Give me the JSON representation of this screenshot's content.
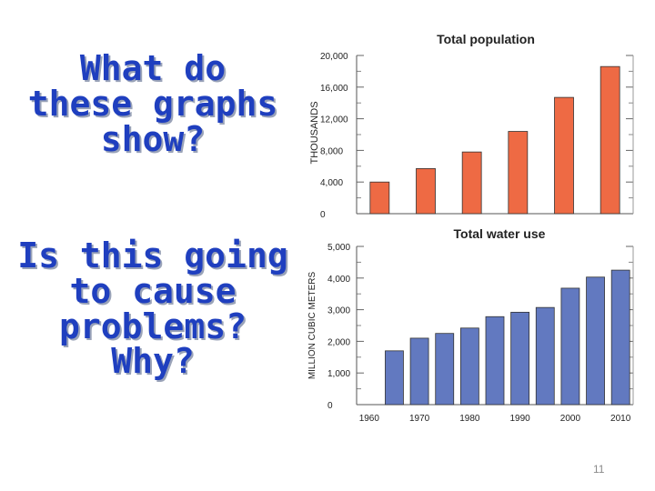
{
  "slide": {
    "question1_lines": [
      "What do",
      "these graphs",
      "show?"
    ],
    "question2_lines": [
      "Is this going",
      "to cause",
      "problems?",
      "Why?"
    ],
    "page_number": "11"
  },
  "chart_data": [
    {
      "type": "bar",
      "title": "Total population",
      "ylabel": "THOUSANDS",
      "categories": [
        "1960",
        "1970",
        "1980",
        "1990",
        "2000",
        "2010"
      ],
      "values": [
        4000,
        5700,
        7800,
        10400,
        14700,
        18600
      ],
      "ylim": [
        0,
        20000
      ],
      "yticks": [
        "0",
        "4,000",
        "8,000",
        "12,000",
        "16,000",
        "20,000"
      ],
      "bar_color": "#ee6a44"
    },
    {
      "type": "bar",
      "title": "Total water use",
      "ylabel": "MILLION CUBIC METERS",
      "categories": [
        "1960",
        "1965",
        "1970",
        "1975",
        "1980",
        "1985",
        "1990",
        "1995",
        "2000",
        "2005",
        "2010"
      ],
      "tick_labels": [
        "1960",
        "1970",
        "1980",
        "1990",
        "2000",
        "2010"
      ],
      "values": [
        null,
        1700,
        2100,
        2250,
        2420,
        2780,
        2920,
        3070,
        3680,
        4030,
        4250
      ],
      "ylim": [
        0,
        5000
      ],
      "yticks": [
        "0",
        "1,000",
        "2,000",
        "3,000",
        "4,000",
        "5,000"
      ],
      "bar_color": "#6279c0"
    }
  ]
}
